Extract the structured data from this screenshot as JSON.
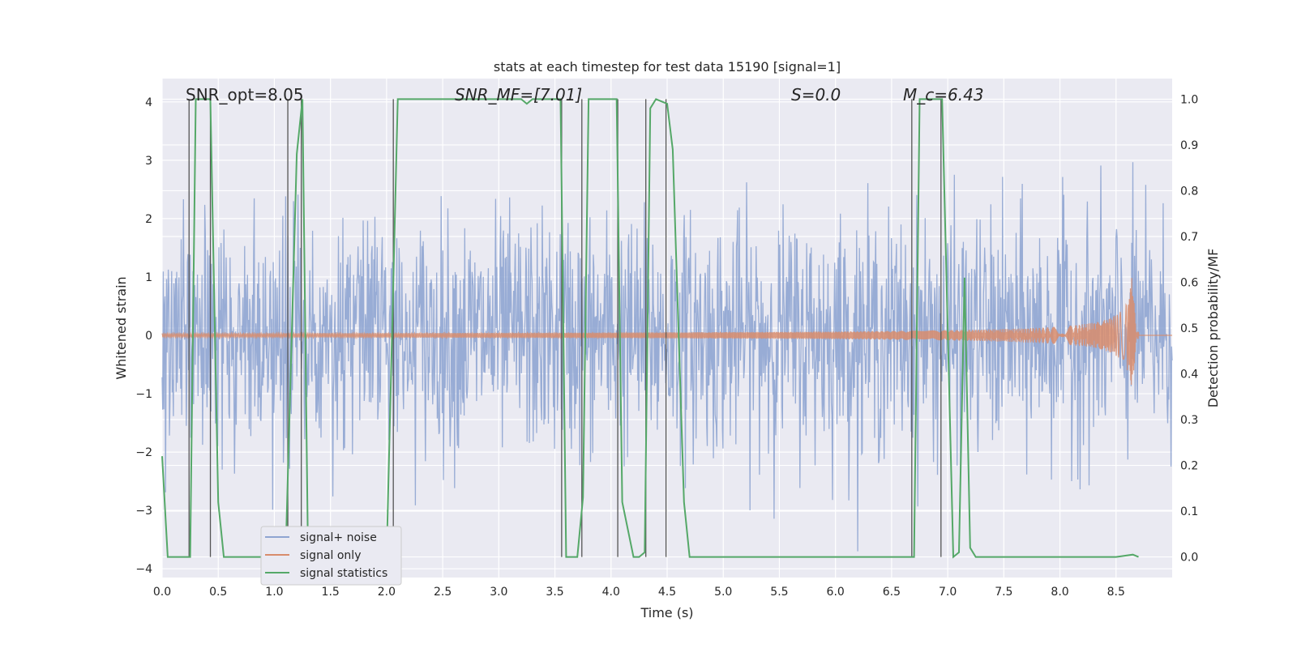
{
  "chart_data": {
    "type": "line",
    "title": "stats at each timestep for test data 15190 [signal=1]",
    "xlabel": "Time (s)",
    "ylabel_left": "Whitened strain",
    "ylabel_right": "Detection probability/MF",
    "xlim": [
      0.0,
      9.0
    ],
    "ylim_left": [
      -4.15,
      4.4
    ],
    "ylim_right": [
      -0.045,
      1.045
    ],
    "x_ticks": [
      "0.0",
      "0.5",
      "1.0",
      "1.5",
      "2.0",
      "2.5",
      "3.0",
      "3.5",
      "4.0",
      "4.5",
      "5.0",
      "5.5",
      "6.0",
      "6.5",
      "7.0",
      "7.5",
      "8.0",
      "8.5"
    ],
    "y_ticks_left": [
      "4",
      "3",
      "2",
      "1",
      "0",
      "−1",
      "−2",
      "−3",
      "−4"
    ],
    "y_ticks_right": [
      "1.0",
      "0.9",
      "0.8",
      "0.7",
      "0.6",
      "0.5",
      "0.4",
      "0.3",
      "0.2",
      "0.1",
      "0.0"
    ],
    "grid": true,
    "legend_position": "lower-left",
    "annotations": {
      "snr_opt": "SNR_opt=8.05",
      "snr_mf": "SNR_MF=[7.01]",
      "s_value": "S=0.0",
      "mc_value": "M_c=6.43"
    },
    "colors": {
      "signal_noise": "#8fa5d1",
      "signal_only": "#d88c6c",
      "statistics": "#55a868",
      "vline": "#555555",
      "background": "#eaeaf2",
      "grid": "#ffffff"
    },
    "series": [
      {
        "name": "signal+ noise",
        "axis": "left",
        "description_type": "noise",
        "amplitude_typical": 2.5,
        "x_range": [
          0.0,
          9.0
        ]
      },
      {
        "name": "signal only",
        "axis": "left",
        "description_type": "chirp",
        "merger_time": 8.65,
        "peak_amplitude": 1.1,
        "x_range": [
          0.0,
          9.0
        ]
      },
      {
        "name": "signal statistics",
        "axis": "right",
        "x": [
          0.0,
          0.05,
          0.25,
          0.3,
          0.43,
          0.5,
          0.55,
          1.1,
          1.2,
          1.25,
          1.3,
          2.0,
          2.1,
          3.2,
          3.25,
          3.3,
          3.55,
          3.6,
          3.7,
          3.75,
          3.8,
          4.05,
          4.1,
          4.2,
          4.25,
          4.3,
          4.35,
          4.4,
          4.5,
          4.55,
          4.65,
          4.7,
          6.7,
          6.75,
          6.8,
          6.95,
          7.05,
          7.1,
          7.15,
          7.2,
          7.25,
          7.3,
          8.5,
          8.65,
          8.7
        ],
        "y": [
          0.22,
          0.0,
          0.0,
          1.0,
          1.0,
          0.12,
          0.0,
          0.0,
          0.88,
          1.0,
          0.0,
          0.0,
          1.0,
          1.0,
          0.99,
          1.0,
          1.0,
          0.0,
          0.0,
          0.13,
          1.0,
          1.0,
          0.12,
          0.0,
          0.0,
          0.01,
          0.98,
          1.0,
          0.99,
          0.89,
          0.12,
          0.0,
          0.0,
          1.0,
          1.0,
          1.0,
          0.0,
          0.01,
          0.61,
          0.02,
          0.0,
          0.0,
          0.0,
          0.005,
          0.0
        ]
      }
    ],
    "vertical_lines": [
      0.24,
      0.43,
      1.12,
      1.24,
      2.06,
      3.56,
      3.74,
      4.06,
      4.31,
      4.49,
      6.68,
      6.94
    ]
  },
  "legend": {
    "items": [
      {
        "label": "signal+ noise",
        "color": "#8fa5d1"
      },
      {
        "label": "signal only",
        "color": "#d88c6c"
      },
      {
        "label": "signal statistics",
        "color": "#55a868"
      }
    ]
  }
}
